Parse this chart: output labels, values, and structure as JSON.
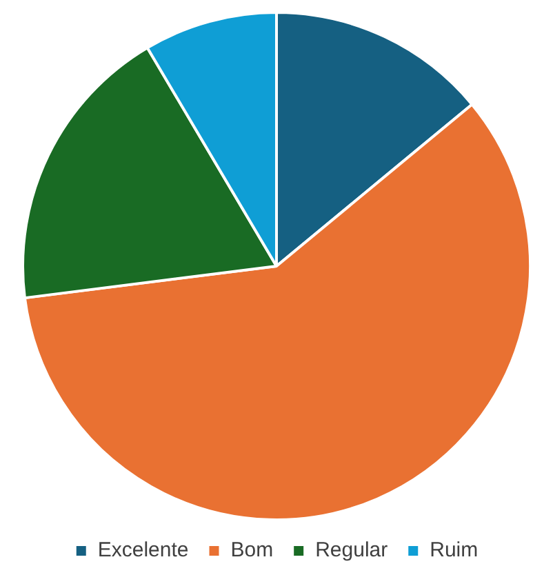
{
  "chart_data": {
    "type": "pie",
    "categories": [
      "Excelente",
      "Bom",
      "Regular",
      "Ruim"
    ],
    "values": [
      14,
      59,
      18.5,
      8.5
    ],
    "colors": [
      "#156082",
      "#e97132",
      "#196b24",
      "#0f9ed5"
    ],
    "legend": "bottom"
  }
}
